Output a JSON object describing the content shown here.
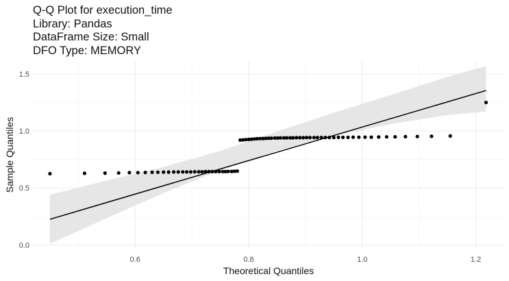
{
  "chart_data": {
    "type": "scatter",
    "title_lines": [
      "Q-Q Plot for execution_time",
      "Library: Pandas",
      "DataFrame Size: Small",
      "DFO Type: MEMORY"
    ],
    "xlabel": "Theoretical Quantiles",
    "ylabel": "Sample Quantiles",
    "xlim": [
      0.42,
      1.25
    ],
    "ylim": [
      -0.04,
      1.62
    ],
    "x_ticks": [
      0.6,
      0.8,
      1.0,
      1.2
    ],
    "x_tick_labels": [
      "0.6",
      "0.8",
      "1.0",
      "1.2"
    ],
    "y_ticks": [
      0.0,
      0.5,
      1.0,
      1.5
    ],
    "y_tick_labels": [
      "0.0",
      "0.5",
      "1.0",
      "1.5"
    ],
    "grid": true,
    "legend": "none",
    "points": {
      "x": [
        0.45,
        0.511,
        0.547,
        0.571,
        0.59,
        0.605,
        0.618,
        0.63,
        0.64,
        0.65,
        0.659,
        0.668,
        0.676,
        0.684,
        0.691,
        0.698,
        0.705,
        0.712,
        0.718,
        0.724,
        0.73,
        0.736,
        0.742,
        0.748,
        0.754,
        0.759,
        0.764,
        0.77,
        0.775,
        0.78,
        0.785,
        0.79,
        0.795,
        0.8,
        0.805,
        0.81,
        0.815,
        0.82,
        0.825,
        0.83,
        0.835,
        0.84,
        0.846,
        0.851,
        0.856,
        0.862,
        0.867,
        0.873,
        0.878,
        0.884,
        0.89,
        0.896,
        0.902,
        0.908,
        0.915,
        0.921,
        0.928,
        0.935,
        0.942,
        0.95,
        0.958,
        0.966,
        0.975,
        0.984,
        0.994,
        1.005,
        1.016,
        1.029,
        1.043,
        1.058,
        1.076,
        1.097,
        1.122,
        1.155,
        1.218
      ],
      "y": [
        0.625,
        0.628,
        0.63,
        0.632,
        0.634,
        0.635,
        0.636,
        0.637,
        0.638,
        0.639,
        0.639,
        0.64,
        0.64,
        0.641,
        0.641,
        0.641,
        0.642,
        0.642,
        0.642,
        0.643,
        0.643,
        0.643,
        0.643,
        0.644,
        0.644,
        0.644,
        0.645,
        0.645,
        0.646,
        0.648,
        0.92,
        0.922,
        0.924,
        0.926,
        0.928,
        0.93,
        0.932,
        0.933,
        0.934,
        0.935,
        0.936,
        0.937,
        0.938,
        0.938,
        0.939,
        0.939,
        0.94,
        0.94,
        0.94,
        0.941,
        0.941,
        0.941,
        0.942,
        0.942,
        0.942,
        0.942,
        0.943,
        0.943,
        0.943,
        0.943,
        0.944,
        0.944,
        0.944,
        0.945,
        0.945,
        0.946,
        0.946,
        0.947,
        0.948,
        0.949,
        0.95,
        0.951,
        0.953,
        0.956,
        1.25
      ]
    },
    "reference_line": {
      "x": [
        0.45,
        1.218
      ],
      "y": [
        0.225,
        1.355
      ]
    },
    "confidence_band": {
      "x": [
        0.45,
        0.55,
        0.65,
        0.75,
        0.85,
        0.95,
        1.05,
        1.15,
        1.218
      ],
      "lower": [
        0.01,
        0.235,
        0.455,
        0.655,
        0.825,
        0.955,
        1.06,
        1.14,
        1.17
      ],
      "upper": [
        0.44,
        0.565,
        0.685,
        0.825,
        0.995,
        1.16,
        1.315,
        1.475,
        1.57
      ]
    },
    "colors": {
      "points": "#000000",
      "line": "#000000",
      "band": "#e6e6e6",
      "grid_major": "#ebebeb",
      "grid_minor": "#f4f4f4"
    }
  }
}
